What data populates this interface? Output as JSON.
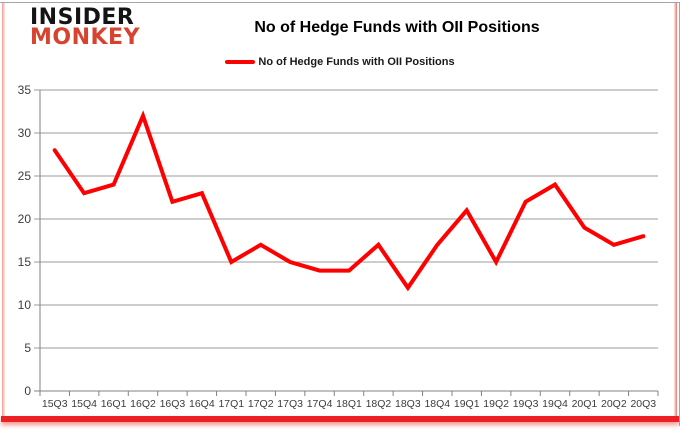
{
  "logo": {
    "line1": "INSIDER",
    "line2": "MONKEY"
  },
  "header": {
    "title": "No of Hedge Funds with OII Positions"
  },
  "legend": {
    "label": "No of Hedge Funds with OII Positions"
  },
  "colors": {
    "series_red": "#ff0000",
    "logo_red": "#d8432f",
    "grid": "#9b9b9b",
    "axis": "#808080",
    "tick_text": "#3c3c3c",
    "border_red": "#ec2024",
    "border_gray": "#a6a6a6"
  },
  "chart_data": {
    "type": "line",
    "title": "No of Hedge Funds with OII Positions",
    "categories": [
      "15Q3",
      "15Q4",
      "16Q1",
      "16Q2",
      "16Q3",
      "16Q4",
      "17Q1",
      "17Q2",
      "17Q3",
      "17Q4",
      "18Q1",
      "18Q2",
      "18Q3",
      "18Q4",
      "19Q1",
      "19Q2",
      "19Q3",
      "19Q4",
      "20Q1",
      "20Q2",
      "20Q3"
    ],
    "series": [
      {
        "name": "No of Hedge Funds with OII Positions",
        "color": "#ff0000",
        "values": [
          28,
          23,
          24,
          32,
          22,
          23,
          15,
          17,
          15,
          14,
          14,
          17,
          12,
          17,
          21,
          15,
          22,
          24,
          19,
          17,
          18
        ]
      }
    ],
    "xlabel": "",
    "ylabel": "",
    "ylim": [
      0,
      35
    ],
    "yticks": [
      0,
      5,
      10,
      15,
      20,
      25,
      30,
      35
    ],
    "grid": true,
    "legend_position": "top"
  }
}
